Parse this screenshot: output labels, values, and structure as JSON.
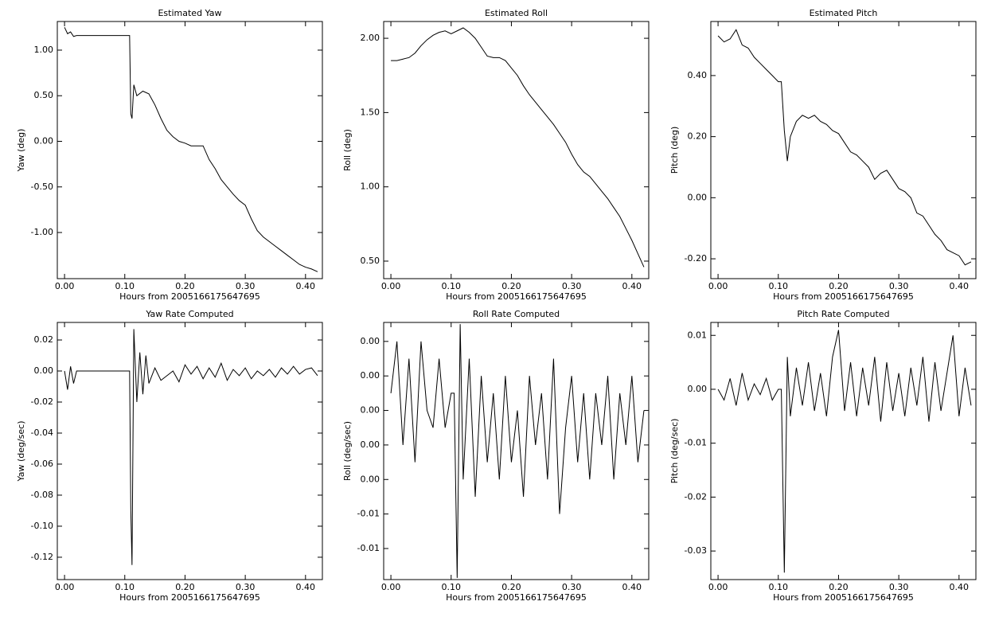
{
  "chart_data": [
    {
      "type": "line",
      "title": "Estimated Yaw",
      "xlabel": "Hours from 2005166175647695",
      "ylabel": "Yaw (deg)",
      "color": "#000000",
      "x": [
        0,
        0.005,
        0.01,
        0.015,
        0.02,
        0.108,
        0.11,
        0.112,
        0.115,
        0.12,
        0.13,
        0.14,
        0.15,
        0.16,
        0.17,
        0.18,
        0.19,
        0.2,
        0.21,
        0.22,
        0.23,
        0.24,
        0.25,
        0.26,
        0.27,
        0.28,
        0.29,
        0.3,
        0.31,
        0.32,
        0.33,
        0.34,
        0.35,
        0.36,
        0.37,
        0.38,
        0.39,
        0.4,
        0.41,
        0.42
      ],
      "values": [
        1.25,
        1.18,
        1.2,
        1.15,
        1.16,
        1.16,
        0.3,
        0.25,
        0.62,
        0.5,
        0.55,
        0.52,
        0.4,
        0.25,
        0.12,
        0.05,
        0.0,
        -0.02,
        -0.05,
        -0.05,
        -0.05,
        -0.2,
        -0.3,
        -0.42,
        -0.5,
        -0.58,
        -0.65,
        -0.7,
        -0.85,
        -0.98,
        -1.05,
        -1.1,
        -1.15,
        -1.2,
        -1.25,
        -1.3,
        -1.35,
        -1.38,
        -1.4,
        -1.43
      ],
      "xlim": [
        -0.012,
        0.428
      ],
      "ylim": [
        -1.506,
        1.314
      ],
      "xticks": [
        {
          "value": 0,
          "label": "0.00"
        },
        {
          "value": 0.1,
          "label": "0.10"
        },
        {
          "value": 0.2,
          "label": "0.20"
        },
        {
          "value": 0.3,
          "label": "0.30"
        },
        {
          "value": 0.4,
          "label": "0.40"
        }
      ],
      "yticks": [
        {
          "value": -1,
          "label": "-1.00"
        },
        {
          "value": -0.5,
          "label": "-0.50"
        },
        {
          "value": 0,
          "label": "0.00"
        },
        {
          "value": 0.5,
          "label": "0.50"
        },
        {
          "value": 1,
          "label": "1.00"
        }
      ]
    },
    {
      "type": "line",
      "title": "Estimated Roll",
      "xlabel": "Hours from 2005166175647695",
      "ylabel": "Roll (deg)",
      "color": "#000000",
      "x": [
        0,
        0.01,
        0.02,
        0.03,
        0.04,
        0.05,
        0.06,
        0.07,
        0.08,
        0.09,
        0.1,
        0.11,
        0.12,
        0.13,
        0.14,
        0.15,
        0.16,
        0.17,
        0.18,
        0.19,
        0.2,
        0.21,
        0.22,
        0.23,
        0.24,
        0.25,
        0.26,
        0.27,
        0.28,
        0.29,
        0.3,
        0.31,
        0.32,
        0.33,
        0.34,
        0.35,
        0.36,
        0.37,
        0.38,
        0.39,
        0.4,
        0.41,
        0.42
      ],
      "values": [
        1.85,
        1.85,
        1.86,
        1.87,
        1.9,
        1.95,
        1.99,
        2.02,
        2.04,
        2.05,
        2.03,
        2.05,
        2.07,
        2.04,
        2.0,
        1.94,
        1.88,
        1.87,
        1.87,
        1.85,
        1.8,
        1.75,
        1.68,
        1.62,
        1.57,
        1.52,
        1.47,
        1.42,
        1.36,
        1.3,
        1.22,
        1.15,
        1.1,
        1.07,
        1.02,
        0.97,
        0.92,
        0.86,
        0.8,
        0.72,
        0.64,
        0.55,
        0.46
      ],
      "xlim": [
        -0.012,
        0.428
      ],
      "ylim": [
        0.382,
        2.113
      ],
      "xticks": [
        {
          "value": 0,
          "label": "0.00"
        },
        {
          "value": 0.1,
          "label": "0.10"
        },
        {
          "value": 0.2,
          "label": "0.20"
        },
        {
          "value": 0.3,
          "label": "0.30"
        },
        {
          "value": 0.4,
          "label": "0.40"
        }
      ],
      "yticks": [
        {
          "value": 0.5,
          "label": "0.50"
        },
        {
          "value": 1,
          "label": "1.00"
        },
        {
          "value": 1.5,
          "label": "1.50"
        },
        {
          "value": 2,
          "label": "2.00"
        }
      ]
    },
    {
      "type": "line",
      "title": "Estimated Pitch",
      "xlabel": "Hours from 2005166175647695",
      "ylabel": "Pitch (deg)",
      "color": "#000000",
      "x": [
        0,
        0.01,
        0.02,
        0.03,
        0.04,
        0.05,
        0.06,
        0.07,
        0.08,
        0.09,
        0.1,
        0.105,
        0.11,
        0.115,
        0.12,
        0.13,
        0.14,
        0.15,
        0.16,
        0.17,
        0.18,
        0.19,
        0.2,
        0.21,
        0.22,
        0.23,
        0.24,
        0.25,
        0.26,
        0.27,
        0.28,
        0.29,
        0.3,
        0.31,
        0.32,
        0.33,
        0.34,
        0.35,
        0.36,
        0.37,
        0.38,
        0.39,
        0.4,
        0.41,
        0.42
      ],
      "values": [
        0.53,
        0.51,
        0.52,
        0.55,
        0.5,
        0.49,
        0.46,
        0.44,
        0.42,
        0.4,
        0.38,
        0.38,
        0.22,
        0.12,
        0.2,
        0.25,
        0.27,
        0.26,
        0.27,
        0.25,
        0.24,
        0.22,
        0.21,
        0.18,
        0.15,
        0.14,
        0.12,
        0.1,
        0.06,
        0.08,
        0.09,
        0.06,
        0.03,
        0.02,
        0.0,
        -0.05,
        -0.06,
        -0.09,
        -0.12,
        -0.14,
        -0.17,
        -0.18,
        -0.19,
        -0.22,
        -0.21
      ],
      "xlim": [
        -0.012,
        0.428
      ],
      "ylim": [
        -0.265,
        0.577
      ],
      "xticks": [
        {
          "value": 0,
          "label": "0.00"
        },
        {
          "value": 0.1,
          "label": "0.10"
        },
        {
          "value": 0.2,
          "label": "0.20"
        },
        {
          "value": 0.3,
          "label": "0.30"
        },
        {
          "value": 0.4,
          "label": "0.40"
        }
      ],
      "yticks": [
        {
          "value": -0.2,
          "label": "-0.20"
        },
        {
          "value": 0,
          "label": "0.00"
        },
        {
          "value": 0.2,
          "label": "0.20"
        },
        {
          "value": 0.4,
          "label": "0.40"
        }
      ]
    },
    {
      "type": "line",
      "title": "Yaw Rate Computed",
      "xlabel": "Hours from 2005166175647695",
      "ylabel": "Yaw (deg/sec)",
      "color": "#000000",
      "x": [
        0,
        0.005,
        0.01,
        0.015,
        0.02,
        0.108,
        0.11,
        0.112,
        0.115,
        0.12,
        0.125,
        0.13,
        0.135,
        0.14,
        0.15,
        0.16,
        0.17,
        0.18,
        0.19,
        0.2,
        0.21,
        0.22,
        0.23,
        0.24,
        0.25,
        0.26,
        0.27,
        0.28,
        0.29,
        0.3,
        0.31,
        0.32,
        0.33,
        0.34,
        0.35,
        0.36,
        0.37,
        0.38,
        0.39,
        0.4,
        0.41,
        0.42
      ],
      "values": [
        0,
        -0.012,
        0.003,
        -0.008,
        0,
        0,
        -0.09,
        -0.125,
        0.027,
        -0.02,
        0.012,
        -0.015,
        0.01,
        -0.008,
        0.002,
        -0.006,
        -0.003,
        0.0,
        -0.007,
        0.004,
        -0.002,
        0.003,
        -0.005,
        0.002,
        -0.004,
        0.005,
        -0.006,
        0.001,
        -0.003,
        0.002,
        -0.005,
        0.0,
        -0.003,
        0.001,
        -0.004,
        0.002,
        -0.002,
        0.003,
        -0.002,
        0.001,
        0.002,
        -0.003
      ],
      "xlim": [
        -0.012,
        0.428
      ],
      "ylim": [
        -0.1344,
        0.0313
      ],
      "xticks": [
        {
          "value": 0,
          "label": "0.00"
        },
        {
          "value": 0.1,
          "label": "0.10"
        },
        {
          "value": 0.2,
          "label": "0.20"
        },
        {
          "value": 0.3,
          "label": "0.30"
        },
        {
          "value": 0.4,
          "label": "0.40"
        }
      ],
      "yticks": [
        {
          "value": -0.12,
          "label": "-0.12"
        },
        {
          "value": -0.1,
          "label": "-0.10"
        },
        {
          "value": -0.08,
          "label": "-0.08"
        },
        {
          "value": -0.06,
          "label": "-0.06"
        },
        {
          "value": -0.04,
          "label": "-0.04"
        },
        {
          "value": -0.02,
          "label": "-0.02"
        },
        {
          "value": 0,
          "label": "0.00"
        },
        {
          "value": 0.02,
          "label": "0.02"
        }
      ]
    },
    {
      "type": "line",
      "title": "Roll Rate Computed",
      "xlabel": "Hours from 2005166175647695",
      "ylabel": "Roll (deg/sec)",
      "color": "#000000",
      "x": [
        0,
        0.01,
        0.02,
        0.03,
        0.04,
        0.05,
        0.06,
        0.07,
        0.08,
        0.09,
        0.1,
        0.105,
        0.11,
        0.115,
        0.12,
        0.13,
        0.14,
        0.15,
        0.16,
        0.17,
        0.18,
        0.19,
        0.2,
        0.21,
        0.22,
        0.23,
        0.24,
        0.25,
        0.26,
        0.27,
        0.28,
        0.29,
        0.3,
        0.31,
        0.32,
        0.33,
        0.34,
        0.35,
        0.36,
        0.37,
        0.38,
        0.39,
        0.4,
        0.41,
        0.42
      ],
      "values": [
        0.001,
        0.004,
        -0.002,
        0.003,
        -0.003,
        0.004,
        0.0,
        -0.001,
        0.003,
        -0.001,
        0.001,
        0.001,
        -0.0097,
        0.005,
        -0.004,
        0.003,
        -0.005,
        0.002,
        -0.003,
        0.001,
        -0.004,
        0.002,
        -0.003,
        0.0,
        -0.005,
        0.002,
        -0.002,
        0.001,
        -0.004,
        0.003,
        -0.006,
        -0.001,
        0.002,
        -0.003,
        0.001,
        -0.004,
        0.001,
        -0.002,
        0.002,
        -0.004,
        0.001,
        -0.002,
        0.002,
        -0.003,
        0.0
      ],
      "xlim": [
        -0.012,
        0.428
      ],
      "ylim": [
        -0.0098,
        0.0051
      ],
      "xticks": [
        {
          "value": 0,
          "label": "0.00"
        },
        {
          "value": 0.1,
          "label": "0.10"
        },
        {
          "value": 0.2,
          "label": "0.20"
        },
        {
          "value": 0.3,
          "label": "0.30"
        },
        {
          "value": 0.4,
          "label": "0.40"
        }
      ],
      "yticks": [
        {
          "value": -0.008,
          "label": "-0.01"
        },
        {
          "value": -0.006,
          "label": "-0.01"
        },
        {
          "value": -0.004,
          "label": "0.00"
        },
        {
          "value": -0.002,
          "label": "0.00"
        },
        {
          "value": 0,
          "label": "0.00"
        },
        {
          "value": 0.002,
          "label": "0.00"
        },
        {
          "value": 0.004,
          "label": "0.00"
        }
      ]
    },
    {
      "type": "line",
      "title": "Pitch Rate Computed",
      "xlabel": "Hours from 2005166175647695",
      "ylabel": "Pitch (deg/sec)",
      "color": "#000000",
      "x": [
        0,
        0.01,
        0.02,
        0.03,
        0.04,
        0.05,
        0.06,
        0.07,
        0.08,
        0.09,
        0.1,
        0.105,
        0.11,
        0.115,
        0.12,
        0.13,
        0.14,
        0.15,
        0.16,
        0.17,
        0.18,
        0.19,
        0.2,
        0.21,
        0.22,
        0.23,
        0.24,
        0.25,
        0.26,
        0.27,
        0.28,
        0.29,
        0.3,
        0.31,
        0.32,
        0.33,
        0.34,
        0.35,
        0.36,
        0.37,
        0.38,
        0.39,
        0.4,
        0.41,
        0.42
      ],
      "values": [
        0,
        -0.002,
        0.002,
        -0.003,
        0.003,
        -0.002,
        0.001,
        -0.001,
        0.002,
        -0.002,
        0.0,
        0.0,
        -0.034,
        0.006,
        -0.005,
        0.004,
        -0.003,
        0.005,
        -0.004,
        0.003,
        -0.005,
        0.006,
        0.011,
        -0.004,
        0.005,
        -0.005,
        0.004,
        -0.003,
        0.006,
        -0.006,
        0.005,
        -0.004,
        0.003,
        -0.005,
        0.004,
        -0.003,
        0.006,
        -0.006,
        0.005,
        -0.004,
        0.003,
        0.01,
        -0.005,
        0.004,
        -0.003
      ],
      "xlim": [
        -0.012,
        0.428
      ],
      "ylim": [
        -0.0353,
        0.0124
      ],
      "xticks": [
        {
          "value": 0,
          "label": "0.00"
        },
        {
          "value": 0.1,
          "label": "0.10"
        },
        {
          "value": 0.2,
          "label": "0.20"
        },
        {
          "value": 0.3,
          "label": "0.30"
        },
        {
          "value": 0.4,
          "label": "0.40"
        }
      ],
      "yticks": [
        {
          "value": -0.03,
          "label": "-0.03"
        },
        {
          "value": -0.02,
          "label": "-0.02"
        },
        {
          "value": -0.01,
          "label": "-0.01"
        },
        {
          "value": 0,
          "label": "0.00"
        },
        {
          "value": 0.01,
          "label": "0.01"
        }
      ]
    }
  ]
}
